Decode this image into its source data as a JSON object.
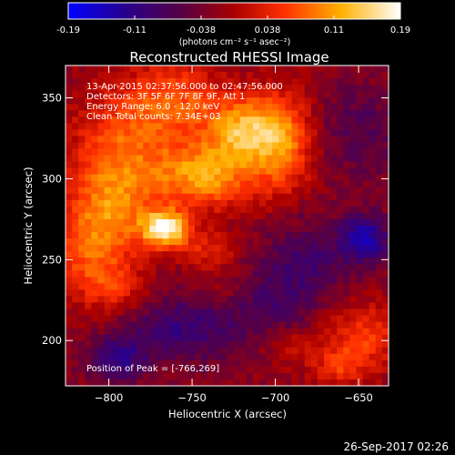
{
  "chart_data": {
    "type": "heatmap",
    "title": "Reconstructed RHESSI Image",
    "xlabel": "Heliocentric X (arcsec)",
    "ylabel": "Heliocentric Y (arcsec)",
    "xlim": [
      -826,
      -632
    ],
    "ylim": [
      172,
      370
    ],
    "x_ticks": [
      -800,
      -750,
      -700,
      -650
    ],
    "y_ticks": [
      200,
      250,
      300,
      350
    ],
    "colorbar": {
      "ticks": [
        "-0.19",
        "-0.11",
        "-0.038",
        "0.038",
        "0.11",
        "0.19"
      ],
      "range": [
        -0.19,
        0.19
      ],
      "units_label": "(photons cm⁻² s⁻¹ asec⁻²)",
      "colors": [
        "#0000ff",
        "#3a0066",
        "#6a0030",
        "#d00000",
        "#ff6a00",
        "#ffd000",
        "#ffffff"
      ]
    },
    "peak": [
      -766,
      269
    ],
    "sources": [
      {
        "x": -766,
        "y": 269,
        "sx": 10,
        "sy": 8,
        "a": 0.19
      },
      {
        "x": -742,
        "y": 302,
        "sx": 20,
        "sy": 14,
        "a": 0.13
      },
      {
        "x": -720,
        "y": 330,
        "sx": 16,
        "sy": 14,
        "a": 0.13
      },
      {
        "x": -696,
        "y": 322,
        "sx": 14,
        "sy": 22,
        "a": 0.11
      },
      {
        "x": -790,
        "y": 320,
        "sx": 22,
        "sy": 24,
        "a": 0.09
      },
      {
        "x": -800,
        "y": 280,
        "sx": 18,
        "sy": 20,
        "a": 0.1
      },
      {
        "x": -812,
        "y": 250,
        "sx": 16,
        "sy": 18,
        "a": 0.07
      },
      {
        "x": -760,
        "y": 350,
        "sx": 20,
        "sy": 16,
        "a": 0.08
      },
      {
        "x": -740,
        "y": 255,
        "sx": 12,
        "sy": 8,
        "a": 0.06
      },
      {
        "x": -795,
        "y": 232,
        "sx": 14,
        "sy": 10,
        "a": 0.05
      },
      {
        "x": -730,
        "y": 230,
        "sx": 14,
        "sy": 10,
        "a": 0.035
      },
      {
        "x": -648,
        "y": 203,
        "sx": 16,
        "sy": 14,
        "a": 0.08
      },
      {
        "x": -690,
        "y": 196,
        "sx": 10,
        "sy": 8,
        "a": 0.04
      },
      {
        "x": -662,
        "y": 183,
        "sx": 12,
        "sy": 8,
        "a": 0.06
      },
      {
        "x": -646,
        "y": 263,
        "sx": 10,
        "sy": 10,
        "a": -0.12
      },
      {
        "x": -680,
        "y": 250,
        "sx": 20,
        "sy": 20,
        "a": -0.06
      },
      {
        "x": -795,
        "y": 188,
        "sx": 12,
        "sy": 10,
        "a": -0.09
      },
      {
        "x": -745,
        "y": 210,
        "sx": 24,
        "sy": 18,
        "a": -0.055
      },
      {
        "x": -705,
        "y": 225,
        "sx": 20,
        "sy": 16,
        "a": -0.045
      },
      {
        "x": -650,
        "y": 330,
        "sx": 20,
        "sy": 22,
        "a": -0.05
      },
      {
        "x": -770,
        "y": 205,
        "sx": 20,
        "sy": 12,
        "a": -0.04
      }
    ]
  },
  "annotations": {
    "time_range": "13-Apr-2015 02:37:56.000 to 02:47:56.000",
    "detectors": "Detectors: 3F 5F 6F 7F 8F 9F, Att 1",
    "energy": "Energy Range: 6.0 - 12.0 keV",
    "clean": "Clean     Total counts: 7.34E+03",
    "peak_label": "Position of Peak = [-766,269]"
  },
  "footer": {
    "timestamp": "26-Sep-2017 02:26"
  }
}
